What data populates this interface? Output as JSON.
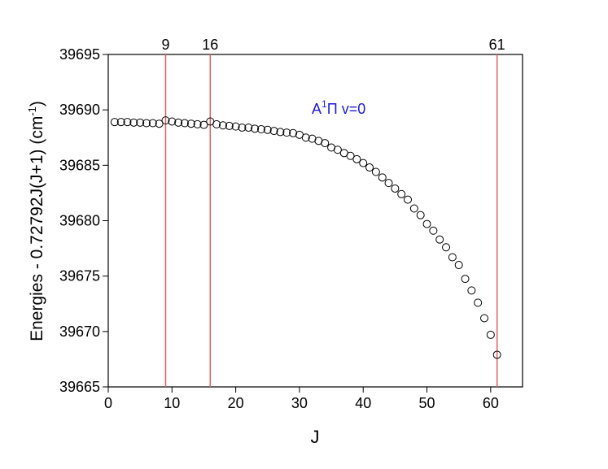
{
  "chart_data": {
    "type": "scatter",
    "xlabel": "J",
    "ylabel_parts": [
      "Energies - 0.72792J(J+1) (cm",
      "-1",
      ")"
    ],
    "annotation_parts": [
      "A",
      "1",
      "Π v=0"
    ],
    "annotation_color": "#1a1adb",
    "x": [
      1,
      2,
      3,
      4,
      5,
      6,
      7,
      8,
      9,
      10,
      11,
      12,
      13,
      14,
      15,
      16,
      17,
      18,
      19,
      20,
      21,
      22,
      23,
      24,
      25,
      26,
      27,
      28,
      29,
      30,
      31,
      32,
      33,
      34,
      35,
      36,
      37,
      38,
      39,
      40,
      41,
      42,
      43,
      44,
      45,
      46,
      47,
      48,
      49,
      50,
      51,
      52,
      53,
      54,
      55,
      56,
      57,
      58,
      59,
      60,
      61
    ],
    "values": [
      39688.9,
      39688.9,
      39688.9,
      39688.85,
      39688.85,
      39688.8,
      39688.8,
      39688.75,
      39689.05,
      39688.95,
      39688.85,
      39688.8,
      39688.75,
      39688.7,
      39688.65,
      39688.95,
      39688.7,
      39688.6,
      39688.55,
      39688.5,
      39688.4,
      39688.4,
      39688.3,
      39688.25,
      39688.2,
      39688.1,
      39688.0,
      39687.95,
      39687.9,
      39687.75,
      39687.5,
      39687.4,
      39687.2,
      39687.0,
      39686.6,
      39686.4,
      39686.1,
      39685.85,
      39685.55,
      39685.2,
      39684.8,
      39684.4,
      39683.9,
      39683.4,
      39682.9,
      39682.4,
      39681.9,
      39681.1,
      39680.5,
      39679.7,
      39679.1,
      39678.3,
      39677.6,
      39676.7,
      39676.0,
      39674.75,
      39673.7,
      39672.6,
      39671.2,
      39669.7,
      39667.9
    ],
    "marker_color": "#000000",
    "vlines": [
      9,
      16,
      61
    ],
    "vline_color": "#e06060",
    "xlim": [
      0,
      65
    ],
    "xticks": [
      0,
      10,
      20,
      30,
      40,
      50,
      60
    ],
    "ylim": [
      39665,
      39695
    ],
    "yticks": [
      39665,
      39670,
      39675,
      39680,
      39685,
      39690,
      39695
    ]
  }
}
